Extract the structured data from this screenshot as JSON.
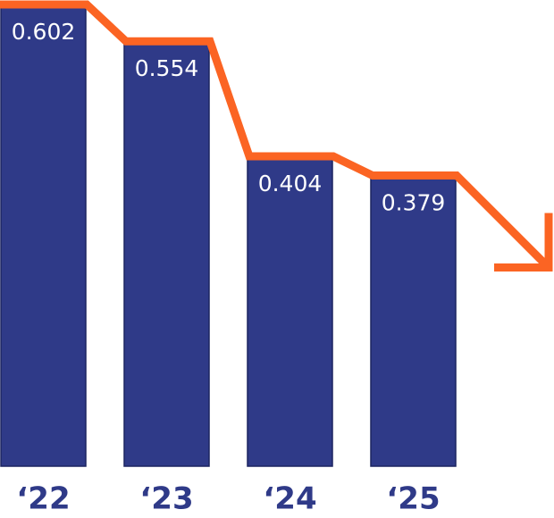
{
  "chart_data": {
    "type": "bar",
    "categories": [
      "‘22",
      "‘23",
      "‘24",
      "‘25"
    ],
    "values": [
      0.602,
      0.554,
      0.404,
      0.379
    ],
    "color": "#2f3a88",
    "line_color": "#fb6423"
  }
}
